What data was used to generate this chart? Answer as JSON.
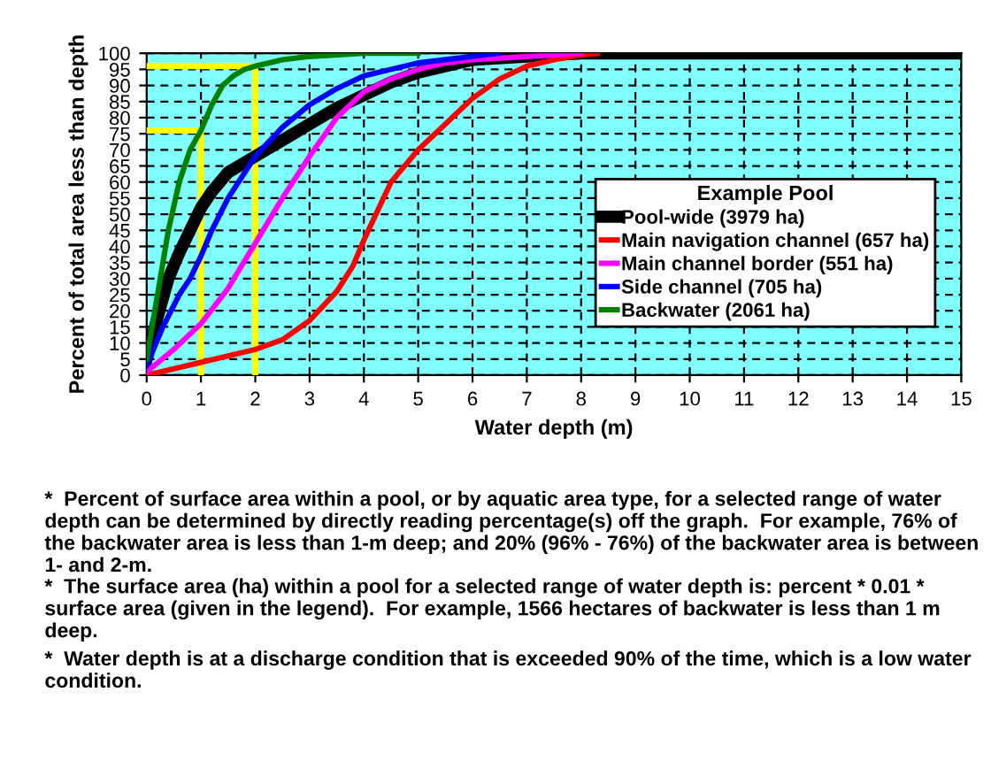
{
  "chart_data": {
    "type": "line",
    "xlabel": "Water depth (m)",
    "ylabel": "Percent of total area less than depth",
    "legend_title": "Example Pool",
    "legend": "right",
    "grid": true,
    "line_style": "solid",
    "marker": "none",
    "xlim": [
      0,
      15
    ],
    "xticks": [
      0,
      1,
      2,
      3,
      4,
      5,
      6,
      7,
      8,
      9,
      10,
      11,
      12,
      13,
      14,
      15
    ],
    "ylim": [
      0,
      100
    ],
    "yticks": [
      0,
      5,
      10,
      15,
      20,
      25,
      30,
      35,
      40,
      45,
      50,
      55,
      60,
      65,
      70,
      75,
      80,
      85,
      90,
      95,
      100
    ],
    "series": [
      {
        "color": "#ffff00",
        "x": [
          0,
          1,
          1
        ],
        "values": [
          76,
          76,
          0
        ]
      },
      {
        "color": "#ffff00",
        "x": [
          0,
          2,
          2
        ],
        "values": [
          96,
          96,
          0
        ]
      },
      {
        "name": "Pool-wide (3979 ha)",
        "color": "#000000",
        "x": [
          0,
          0.2,
          0.4,
          0.6,
          0.8,
          1,
          1.2,
          1.5,
          2,
          2.5,
          3,
          3.5,
          4,
          4.5,
          5,
          5.5,
          6,
          7,
          8,
          15
        ],
        "values": [
          5,
          18,
          30,
          38,
          45,
          52,
          57,
          63,
          68,
          73,
          78,
          83,
          87,
          91,
          94,
          96,
          98,
          99,
          100,
          100
        ]
      },
      {
        "name": "Main navigation channel (657 ha)",
        "color": "#ff0000",
        "x": [
          0,
          0.5,
          1,
          1.5,
          2,
          2.5,
          3,
          3.5,
          3.8,
          4,
          4.5,
          5,
          5.5,
          6,
          6.5,
          7,
          7.5,
          8,
          8.3
        ],
        "values": [
          0,
          2,
          4,
          6,
          8,
          11,
          17,
          26,
          34,
          42,
          60,
          70,
          78,
          86,
          92,
          96,
          98,
          99.5,
          100
        ]
      },
      {
        "name": "Main channel border (551 ha)",
        "color": "#ff00ff",
        "x": [
          0,
          0.5,
          1,
          1.5,
          2,
          2.5,
          3,
          3.5,
          4,
          4.5,
          5,
          5.5,
          6,
          7,
          8
        ],
        "values": [
          1,
          8,
          16,
          27,
          41,
          55,
          68,
          80,
          88,
          92,
          95,
          97,
          98,
          99,
          100
        ]
      },
      {
        "name": "Side channel (705 ha)",
        "color": "#0000ff",
        "x": [
          0,
          0.3,
          0.6,
          0.8,
          1,
          1.2,
          1.5,
          2,
          2.5,
          3,
          3.5,
          4,
          4.5,
          5,
          6,
          6.5
        ],
        "values": [
          3,
          15,
          25,
          30,
          37,
          45,
          55,
          68,
          77,
          84,
          89,
          93,
          95,
          97,
          99,
          100
        ]
      },
      {
        "name": "Backwater (2061 ha)",
        "color": "#008000",
        "x": [
          0,
          0.2,
          0.4,
          0.6,
          0.8,
          1,
          1.2,
          1.4,
          1.6,
          1.8,
          2,
          2.5,
          3,
          4,
          5
        ],
        "values": [
          5,
          25,
          45,
          60,
          70,
          76,
          84,
          90,
          93,
          95,
          96,
          98,
          99,
          100,
          100
        ]
      }
    ],
    "annotations": [
      "*  Percent of surface area within a pool, or by aquatic area type, for a selected range of water depth can be determined by directly reading percentage(s) off the graph.  For example, 76% of the backwater area is less than 1-m deep; and 20% (96% - 76%) of the backwater area is between 1- and 2-m.",
      "*  The surface area (ha) within a pool for a selected range of water depth is: percent * 0.01 * surface area (given in the legend).  For example, 1566 hectares of backwater is less than 1 m deep.",
      "*  Water depth is at a discharge condition that is exceeded 90% of the time, which is a low water condition."
    ]
  }
}
